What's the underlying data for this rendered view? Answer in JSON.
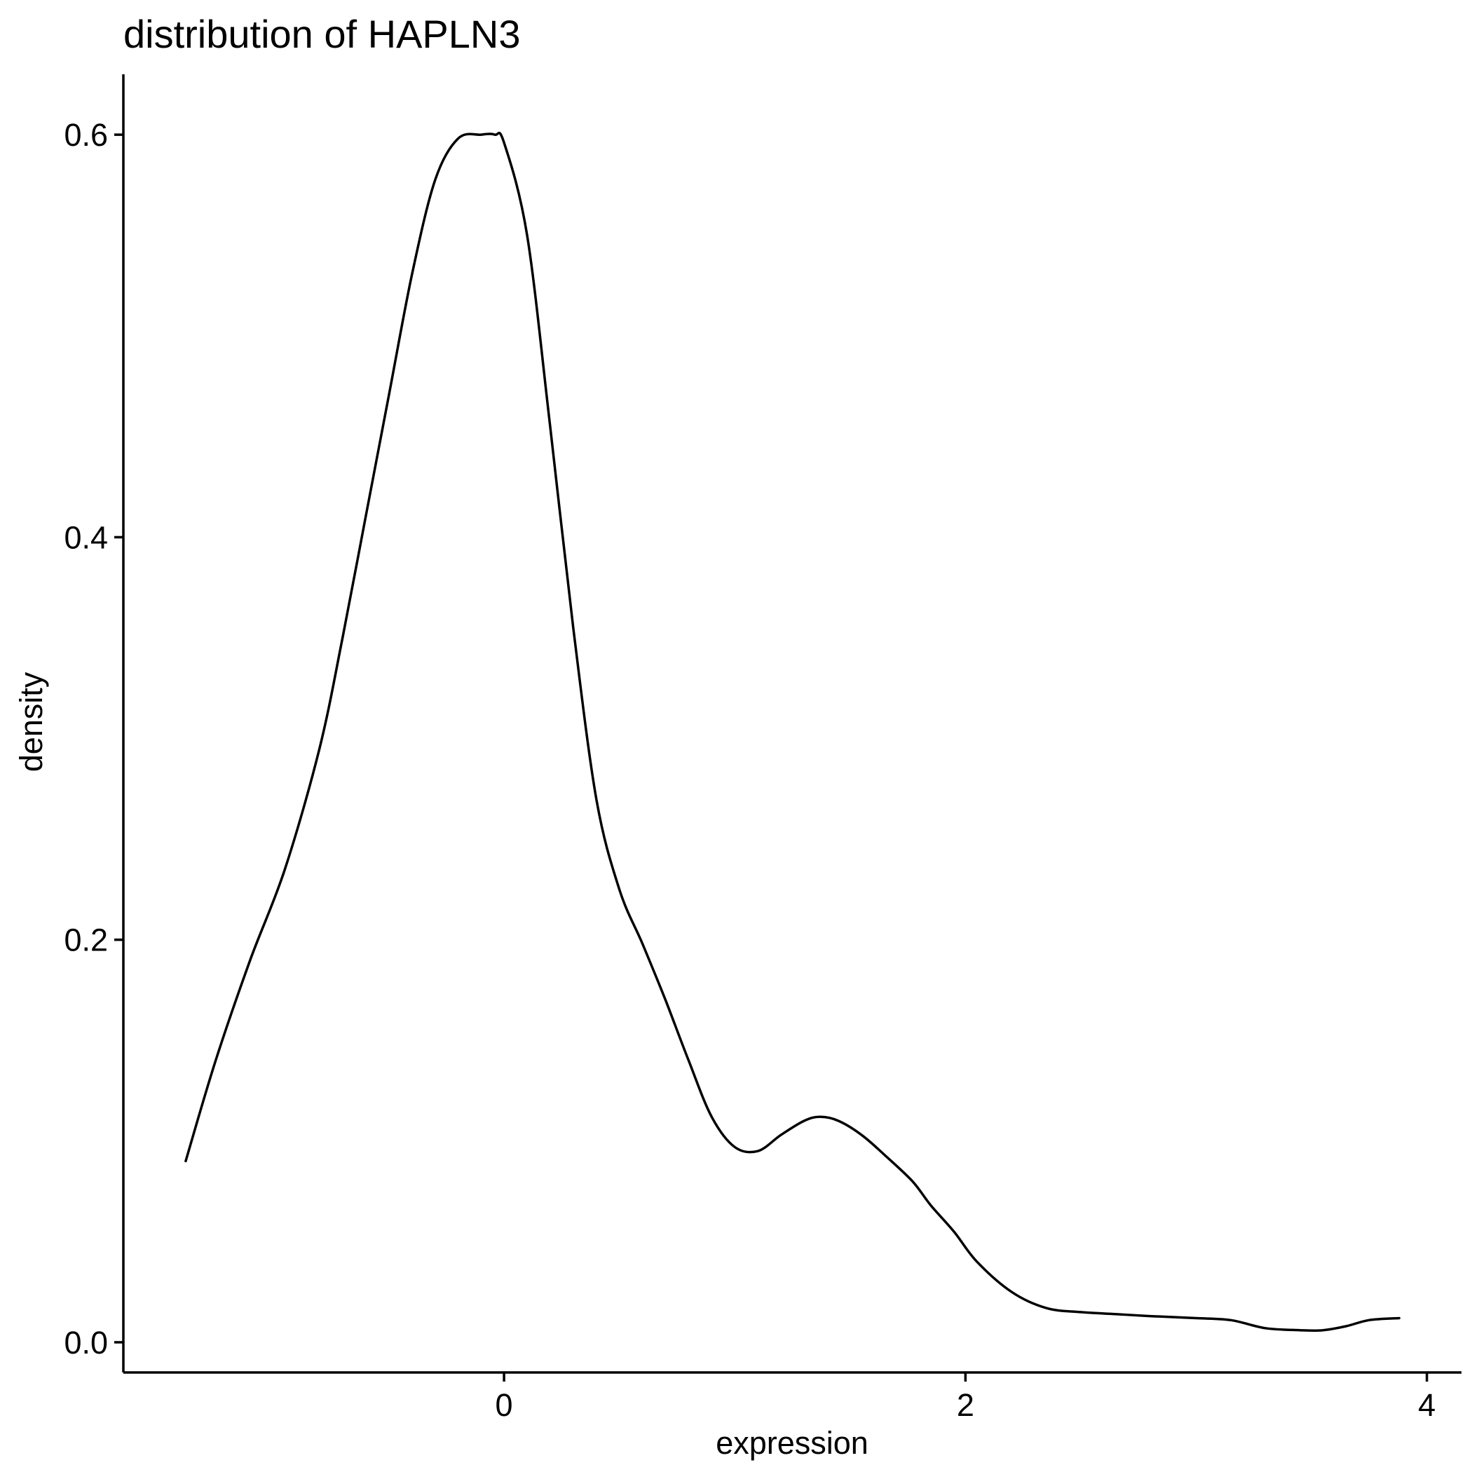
{
  "chart_data": {
    "type": "line",
    "title": "distribution of HAPLN3",
    "xlabel": "expression",
    "ylabel": "density",
    "xlim": [
      -1.65,
      4.15
    ],
    "ylim": [
      -0.015,
      0.63
    ],
    "x_ticks": [
      {
        "value": 0,
        "label": "0"
      },
      {
        "value": 2,
        "label": "2"
      },
      {
        "value": 4,
        "label": "4"
      }
    ],
    "y_ticks": [
      {
        "value": 0.0,
        "label": "0.0"
      },
      {
        "value": 0.2,
        "label": "0.2"
      },
      {
        "value": 0.4,
        "label": "0.4"
      },
      {
        "value": 0.6,
        "label": "0.6"
      }
    ],
    "grid": false,
    "legend": "none",
    "line_color": "#000000",
    "series": [
      {
        "x": [
          -1.38,
          -1.25,
          -1.1,
          -0.95,
          -0.8,
          -0.7,
          -0.6,
          -0.5,
          -0.4,
          -0.3,
          -0.2,
          -0.1,
          -0.04,
          0.0,
          0.1,
          0.2,
          0.3,
          0.4,
          0.5,
          0.6,
          0.7,
          0.8,
          0.9,
          1.0,
          1.1,
          1.2,
          1.3,
          1.37,
          1.45,
          1.55,
          1.65,
          1.77,
          1.85,
          1.95,
          2.05,
          2.2,
          2.35,
          2.5,
          2.65,
          2.8,
          3.0,
          3.15,
          3.3,
          3.45,
          3.55,
          3.65,
          3.75,
          3.88
        ],
        "y": [
          0.09,
          0.14,
          0.19,
          0.235,
          0.295,
          0.35,
          0.41,
          0.47,
          0.53,
          0.577,
          0.598,
          0.6,
          0.6,
          0.596,
          0.55,
          0.455,
          0.355,
          0.27,
          0.225,
          0.198,
          0.17,
          0.14,
          0.112,
          0.097,
          0.095,
          0.103,
          0.11,
          0.112,
          0.11,
          0.103,
          0.093,
          0.08,
          0.068,
          0.055,
          0.04,
          0.025,
          0.017,
          0.015,
          0.014,
          0.013,
          0.012,
          0.011,
          0.007,
          0.006,
          0.006,
          0.008,
          0.011,
          0.012
        ]
      }
    ]
  }
}
